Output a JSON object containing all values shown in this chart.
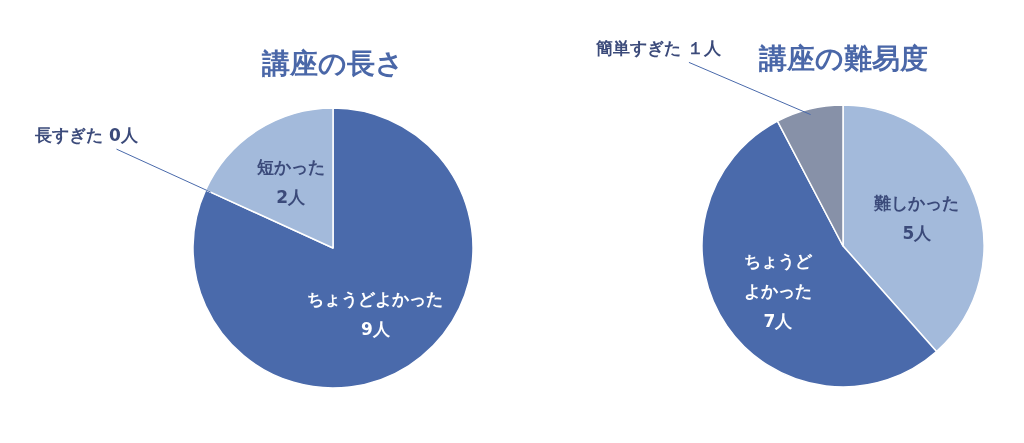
{
  "chart_data": [
    {
      "type": "pie",
      "title": "講座の長さ",
      "categories": [
        "ちょうどよかった",
        "長すぎた",
        "短かった"
      ],
      "values": [
        9,
        0,
        2
      ],
      "colors": [
        "#4a6aab",
        null,
        "#a3badb"
      ],
      "value_labels": [
        "9人",
        "0人",
        "2人"
      ]
    },
    {
      "type": "pie",
      "title": "講座の難易度",
      "categories": [
        "難しかった",
        "ちょうどよかった",
        "簡単すぎた"
      ],
      "values": [
        5,
        7,
        1
      ],
      "colors": [
        "#a3badb",
        "#4a6aab",
        "#8791a8"
      ],
      "value_labels": [
        "5人",
        "7人",
        "１人"
      ]
    }
  ]
}
